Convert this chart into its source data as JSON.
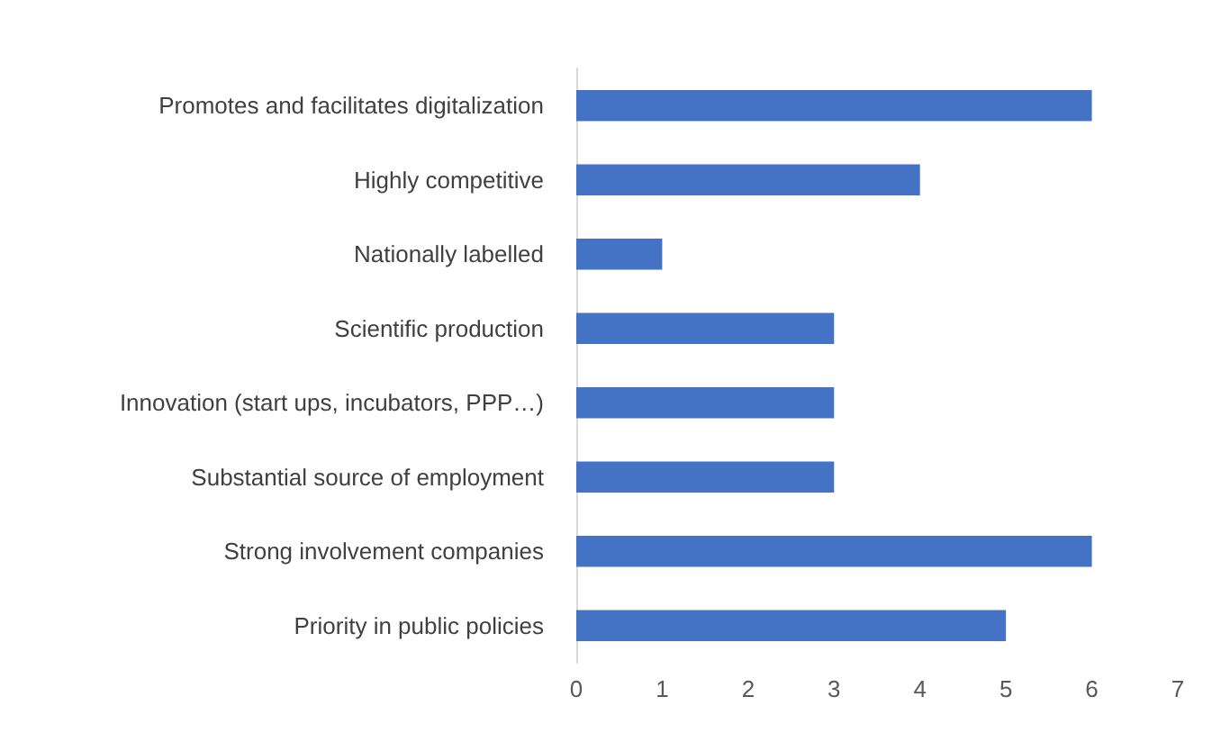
{
  "chart_data": {
    "type": "bar",
    "orientation": "horizontal",
    "categories": [
      "Promotes and facilitates digitalization",
      "Highly competitive",
      "Nationally labelled",
      "Scientific production",
      "Innovation (start ups, incubators, PPP…)",
      "Substantial source of employment",
      "Strong involvement companies",
      "Priority in public policies"
    ],
    "values": [
      6,
      4,
      1,
      3,
      3,
      3,
      6,
      5
    ],
    "color": "#4472c4",
    "xlim": [
      0,
      7
    ],
    "xticks": [
      0,
      1,
      2,
      3,
      4,
      5,
      6,
      7
    ]
  }
}
